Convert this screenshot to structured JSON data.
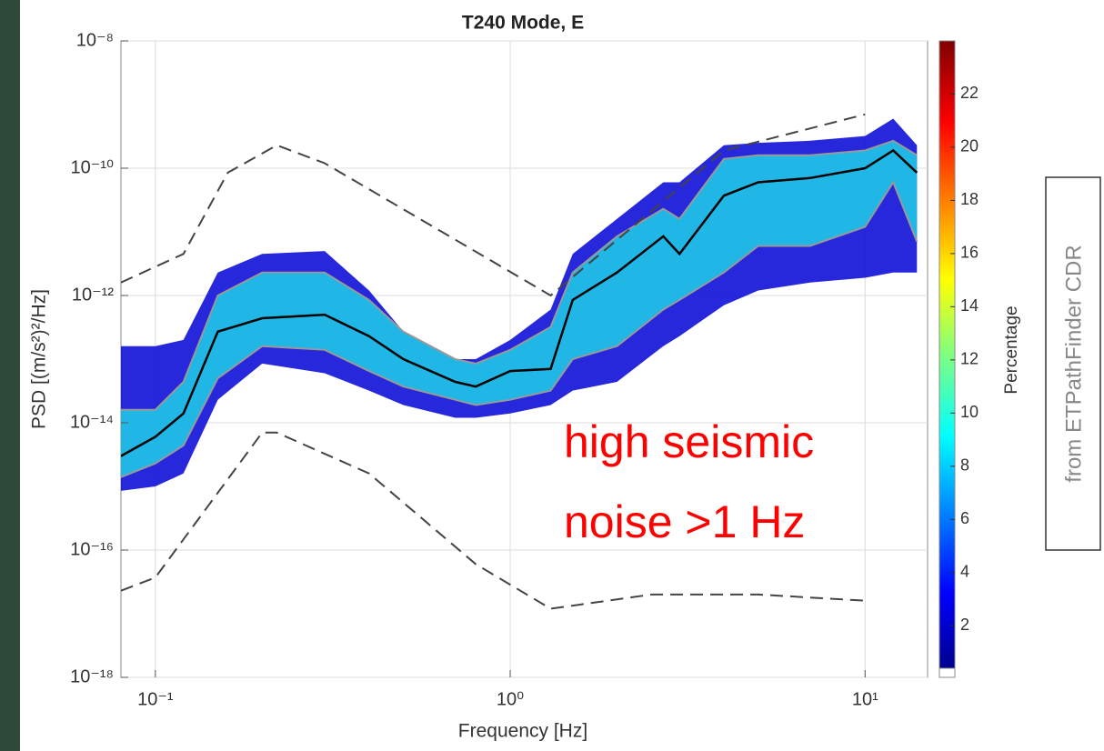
{
  "chart_data": {
    "type": "line",
    "title": "T240 Mode, E",
    "xlabel": "Frequency [Hz]",
    "ylabel": "PSD [(m/s²)²/Hz]",
    "xscale": "log",
    "yscale": "log",
    "grid": true,
    "xlim": [
      0.08,
      15
    ],
    "ylim": [
      1e-18,
      1e-08
    ],
    "xticks": [
      {
        "value": 0.1,
        "label": "10⁻¹"
      },
      {
        "value": 1,
        "label": "10⁰"
      },
      {
        "value": 10,
        "label": "10¹"
      }
    ],
    "yticks": [
      {
        "value": 1e-18,
        "label": "10⁻¹⁸"
      },
      {
        "value": 1e-16,
        "label": "10⁻¹⁶"
      },
      {
        "value": 1e-14,
        "label": "10⁻¹⁴"
      },
      {
        "value": 1e-12,
        "label": "10⁻¹²"
      },
      {
        "value": 1e-10,
        "label": "10⁻¹⁰"
      },
      {
        "value": 1e-08,
        "label": "10⁻⁸"
      }
    ],
    "x": [
      0.08,
      0.1,
      0.12,
      0.15,
      0.2,
      0.3,
      0.4,
      0.5,
      0.7,
      0.8,
      1,
      1.3,
      1.5,
      2,
      2.7,
      3,
      4,
      5,
      7,
      10,
      12,
      14
    ],
    "bands": [
      {
        "color": "#1010d8",
        "upper": [
          1.6e-13,
          1.6e-13,
          2e-13,
          2.3e-12,
          4.5e-12,
          5e-12,
          1.2e-12,
          2.7e-13,
          1e-13,
          1e-13,
          2e-13,
          6e-13,
          4.5e-12,
          1.6e-11,
          6e-11,
          6e-11,
          2.3e-10,
          2.5e-10,
          2.7e-10,
          3.2e-10,
          6e-10,
          2.3e-10
        ],
        "lower": [
          8.5e-16,
          1e-15,
          1.6e-15,
          2.3e-14,
          8.5e-14,
          6e-14,
          3.2e-14,
          1.9e-14,
          1.2e-14,
          1.2e-14,
          1.4e-14,
          1.9e-14,
          3.2e-14,
          4.4e-14,
          1.6e-13,
          2.3e-13,
          7e-13,
          1.2e-12,
          1.6e-12,
          1.9e-12,
          2.3e-12,
          2.3e-12
        ]
      },
      {
        "color": "#20c8e8",
        "upper": [
          1.6e-14,
          1.6e-14,
          4.4e-14,
          1e-12,
          2.3e-12,
          2.3e-12,
          8.5e-13,
          2.7e-13,
          1e-13,
          8.5e-14,
          1.4e-13,
          3.2e-13,
          2.3e-12,
          8.5e-12,
          2.3e-11,
          1.6e-11,
          1.4e-10,
          1.6e-10,
          1.6e-10,
          1.9e-10,
          2.7e-10,
          1.6e-10
        ],
        "lower": [
          1.4e-15,
          2.3e-15,
          4.4e-15,
          5e-14,
          1.6e-13,
          1.4e-13,
          6.5e-14,
          3.7e-14,
          2.3e-14,
          1.9e-14,
          2.3e-14,
          3.2e-14,
          1e-13,
          1.6e-13,
          6e-13,
          8.5e-13,
          2.3e-12,
          6e-12,
          6e-12,
          1.2e-11,
          6e-11,
          7e-12
        ]
      }
    ],
    "series": [
      {
        "color": "#999999",
        "dash": false,
        "values": [
          1.6e-14,
          1.6e-14,
          4.4e-14,
          1e-12,
          2.3e-12,
          2.3e-12,
          8.5e-13,
          2.7e-13,
          1e-13,
          8.5e-14,
          1.4e-13,
          3.2e-13,
          2.3e-12,
          8.5e-12,
          2.3e-11,
          1.6e-11,
          1.4e-10,
          1.6e-10,
          1.6e-10,
          1.9e-10,
          2.7e-10,
          1.6e-10
        ]
      },
      {
        "color": "#999999",
        "dash": false,
        "values": [
          1.4e-15,
          2.3e-15,
          4.4e-15,
          5e-14,
          1.6e-13,
          1.4e-13,
          6.5e-14,
          3.7e-14,
          2.3e-14,
          1.9e-14,
          2.3e-14,
          3.2e-14,
          1e-13,
          1.6e-13,
          6e-13,
          8.5e-13,
          2.3e-12,
          6e-12,
          6e-12,
          1.2e-11,
          6e-11,
          7e-12
        ]
      },
      {
        "color": "#000000",
        "dash": false,
        "values": [
          3e-15,
          6e-15,
          1.4e-14,
          2.7e-13,
          4.4e-13,
          5e-13,
          2.3e-13,
          1e-13,
          4.4e-14,
          3.7e-14,
          6.5e-14,
          7e-14,
          8.5e-13,
          2.3e-12,
          8.5e-12,
          4.5e-12,
          3.7e-11,
          6e-11,
          7e-11,
          1e-10,
          1.9e-10,
          8.5e-11
        ]
      },
      {
        "color": "#444444",
        "dash": true,
        "x": [
          0.08,
          0.12,
          0.16,
          0.22,
          0.3,
          1.3,
          4,
          10
        ],
        "values": [
          1.6e-12,
          4.5e-12,
          8.5e-11,
          2.3e-10,
          1.2e-10,
          1e-12,
          1.9e-10,
          7e-10
        ]
      },
      {
        "color": "#444444",
        "dash": true,
        "x": [
          0.08,
          0.1,
          0.2,
          0.22,
          0.4,
          0.8,
          1.3,
          2.5,
          5,
          10
        ],
        "values": [
          2.3e-17,
          3.7e-17,
          7e-15,
          7e-15,
          1.6e-15,
          6e-17,
          1.2e-17,
          2e-17,
          2e-17,
          1.6e-17
        ]
      }
    ],
    "colorbar": {
      "label": "Percentage",
      "lim": [
        0.4,
        24
      ],
      "ticks": [
        2,
        4,
        6,
        8,
        10,
        12,
        14,
        16,
        18,
        20,
        22
      ]
    },
    "annotations": [
      "high seismic",
      "noise >1 Hz"
    ],
    "source_note": "from ETPathFinder CDR"
  }
}
